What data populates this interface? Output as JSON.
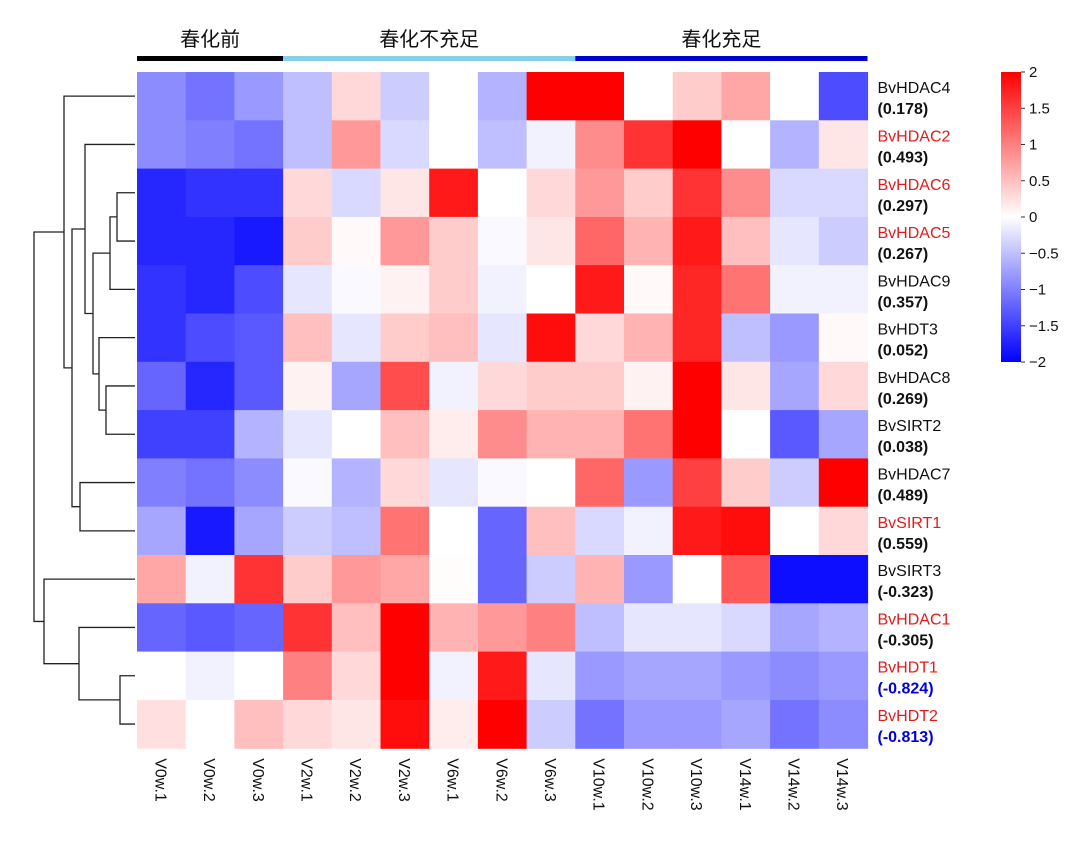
{
  "colors": {
    "high": "#ff0000",
    "mid": "#ffffff",
    "low": "#0000ff",
    "label_red": "#e31a1c",
    "label_blue": "#0000dd",
    "label_black": "#111111",
    "group_before": "#000000",
    "group_insufficient": "#87ceeb",
    "group_sufficient": "#0000cd"
  },
  "chart_data": {
    "type": "heatmap",
    "title": "",
    "color_scale": {
      "min": -2,
      "max": 2,
      "ticks": [
        "2",
        "1.5",
        "1",
        "0.5",
        "0",
        "−0.5",
        "−1",
        "−1.5",
        "−2"
      ]
    },
    "groups": [
      {
        "label": "春化前",
        "color_key": "group_before",
        "columns": [
          "V0w.1",
          "V0w.2",
          "V0w.3"
        ]
      },
      {
        "label": "春化不充足",
        "color_key": "group_insufficient",
        "columns": [
          "V2w.1",
          "V2w.2",
          "V2w.3",
          "V6w.1",
          "V6w.2",
          "V6w.3"
        ]
      },
      {
        "label": "春化充足",
        "color_key": "group_sufficient",
        "columns": [
          "V10w.1",
          "V10w.2",
          "V10w.3",
          "V14w.1",
          "V14w.2",
          "V14w.3"
        ]
      }
    ],
    "columns": [
      "V0w.1",
      "V0w.2",
      "V0w.3",
      "V2w.1",
      "V2w.2",
      "V2w.3",
      "V6w.1",
      "V6w.2",
      "V6w.3",
      "V10w.1",
      "V10w.2",
      "V10w.3",
      "V14w.1",
      "V14w.2",
      "V14w.3"
    ],
    "rows": [
      {
        "name": "BvHDAC4",
        "value": "(0.178)",
        "name_color": "label_black",
        "value_color": "label_black"
      },
      {
        "name": "BvHDAC2",
        "value": "(0.493)",
        "name_color": "label_red",
        "value_color": "label_black"
      },
      {
        "name": "BvHDAC6",
        "value": "(0.297)",
        "name_color": "label_red",
        "value_color": "label_black"
      },
      {
        "name": "BvHDAC5",
        "value": "(0.267)",
        "name_color": "label_red",
        "value_color": "label_black"
      },
      {
        "name": "BvHDAC9",
        "value": "(0.357)",
        "name_color": "label_black",
        "value_color": "label_black"
      },
      {
        "name": "BvHDT3",
        "value": "(0.052)",
        "name_color": "label_black",
        "value_color": "label_black"
      },
      {
        "name": "BvHDAC8",
        "value": "(0.269)",
        "name_color": "label_black",
        "value_color": "label_black"
      },
      {
        "name": "BvSIRT2",
        "value": "(0.038)",
        "name_color": "label_black",
        "value_color": "label_black"
      },
      {
        "name": "BvHDAC7",
        "value": "(0.489)",
        "name_color": "label_black",
        "value_color": "label_black"
      },
      {
        "name": "BvSIRT1",
        "value": "(0.559)",
        "name_color": "label_red",
        "value_color": "label_black"
      },
      {
        "name": "BvSIRT3",
        "value": "(-0.323)",
        "name_color": "label_black",
        "value_color": "label_black"
      },
      {
        "name": "BvHDAC1",
        "value": "(-0.305)",
        "name_color": "label_red",
        "value_color": "label_black"
      },
      {
        "name": "BvHDT1",
        "value": "(-0.824)",
        "name_color": "label_red",
        "value_color": "label_blue"
      },
      {
        "name": "BvHDT2",
        "value": "(-0.813)",
        "name_color": "label_red",
        "value_color": "label_blue"
      }
    ],
    "values": [
      [
        -0.9,
        -1.1,
        -0.8,
        -0.5,
        0.3,
        -0.4,
        0.0,
        -0.6,
        2.0,
        2.0,
        0.0,
        0.4,
        0.7,
        0.0,
        -1.4
      ],
      [
        -0.9,
        -1.0,
        -1.1,
        -0.5,
        0.8,
        -0.3,
        0.0,
        -0.5,
        -0.1,
        0.9,
        1.6,
        2.0,
        0.0,
        -0.6,
        0.2
      ],
      [
        -1.7,
        -1.6,
        -1.6,
        0.3,
        -0.3,
        0.2,
        1.8,
        0.0,
        0.3,
        0.8,
        0.4,
        1.6,
        0.9,
        -0.3,
        -0.3
      ],
      [
        -1.7,
        -1.7,
        -1.8,
        0.4,
        0.05,
        0.8,
        0.4,
        -0.05,
        0.2,
        1.2,
        0.6,
        1.8,
        0.5,
        -0.2,
        -0.4
      ],
      [
        -1.6,
        -1.7,
        -1.4,
        -0.2,
        -0.05,
        0.1,
        0.4,
        -0.1,
        0.0,
        1.8,
        0.05,
        1.7,
        1.1,
        -0.1,
        -0.1
      ],
      [
        -1.6,
        -1.4,
        -1.3,
        0.5,
        -0.2,
        0.4,
        0.5,
        -0.2,
        1.9,
        0.3,
        0.6,
        1.7,
        -0.5,
        -0.8,
        0.05
      ],
      [
        -1.2,
        -1.7,
        -1.3,
        0.1,
        -0.7,
        1.4,
        -0.1,
        0.3,
        0.4,
        0.4,
        0.1,
        2.0,
        0.2,
        -0.7,
        0.3
      ],
      [
        -1.5,
        -1.5,
        -0.6,
        -0.2,
        0.0,
        0.5,
        0.15,
        0.9,
        0.6,
        0.6,
        1.1,
        2.0,
        0.0,
        -1.3,
        -0.7
      ],
      [
        -1.0,
        -1.1,
        -0.9,
        -0.05,
        -0.6,
        0.3,
        -0.2,
        -0.05,
        0.0,
        1.2,
        -0.8,
        1.5,
        0.4,
        -0.4,
        2.0
      ],
      [
        -0.7,
        -1.8,
        -0.7,
        -0.4,
        -0.5,
        1.1,
        0.0,
        -1.2,
        0.5,
        -0.3,
        -0.1,
        1.8,
        1.9,
        0.0,
        0.3
      ],
      [
        0.7,
        -0.1,
        1.6,
        0.4,
        0.8,
        0.7,
        0.02,
        -1.2,
        -0.4,
        0.6,
        -0.8,
        0.0,
        1.3,
        -1.9,
        -1.9
      ],
      [
        -1.2,
        -1.3,
        -1.2,
        1.6,
        0.5,
        2.0,
        0.6,
        0.8,
        1.0,
        -0.5,
        -0.2,
        -0.2,
        -0.3,
        -0.7,
        -0.6
      ],
      [
        0.0,
        -0.1,
        0.0,
        1.0,
        0.3,
        2.0,
        -0.1,
        1.8,
        -0.2,
        -0.8,
        -0.7,
        -0.7,
        -0.8,
        -0.9,
        -0.8
      ],
      [
        0.25,
        0.0,
        0.5,
        0.3,
        0.2,
        1.9,
        0.15,
        2.0,
        -0.4,
        -1.1,
        -0.8,
        -0.8,
        -0.7,
        -1.1,
        -0.9
      ]
    ]
  }
}
